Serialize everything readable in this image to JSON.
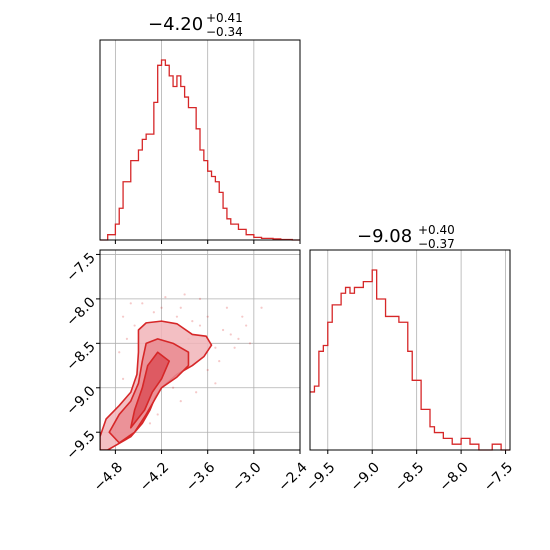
{
  "chart_data": {
    "type": "corner",
    "color": "#d62728",
    "fill_color": "#f1b4b8",
    "grid": true,
    "titles": [
      {
        "median": "−4.20",
        "plus": "+0.41",
        "minus": "−0.34"
      },
      {
        "median": "−9.08",
        "plus": "+0.40",
        "minus": "−0.37"
      }
    ],
    "param1": {
      "range": [
        -5.0,
        -2.4
      ],
      "ticks": [
        -4.8,
        -4.2,
        -3.6,
        -3.0,
        -2.4
      ],
      "tick_labels": [
        "−4.8",
        "−4.2",
        "−3.6",
        "−3.0",
        "−2.4"
      ]
    },
    "param2": {
      "range": [
        -9.7,
        -7.45
      ],
      "ticks_vertical": [
        -7.5,
        -8.0,
        -8.5,
        -9.0,
        -9.5
      ],
      "tick_labels_vertical": [
        "−7.5",
        "−8.0",
        "−8.5",
        "−9.0",
        "−9.5"
      ],
      "ticks_horizontal": [
        -9.5,
        -9.0,
        -8.5,
        -8.0,
        -7.5
      ],
      "tick_labels_horizontal": [
        "−9.5",
        "−9.0",
        "−8.5",
        "−8.0",
        "−7.5"
      ]
    },
    "hist1": {
      "start": -5.0,
      "bin_width": 0.05,
      "counts": [
        0,
        0,
        1,
        1,
        3,
        6,
        11,
        11,
        15,
        15,
        17,
        19,
        20,
        20,
        26,
        33,
        34,
        33,
        31,
        29,
        31,
        29,
        27,
        25,
        25,
        21,
        17,
        15,
        13,
        12,
        11,
        9,
        6,
        4,
        3,
        3,
        2,
        2,
        1,
        1,
        0.5,
        0.5,
        0.3,
        0.3,
        0.3,
        0.2,
        0.2,
        0.1,
        0.1,
        0.1,
        0,
        0
      ]
    },
    "hist2": {
      "start": -9.7,
      "bin_width": 0.05,
      "counts": [
        10,
        11,
        17,
        18,
        22,
        25,
        25,
        27,
        28,
        27,
        28,
        28,
        29,
        29,
        31,
        26,
        26,
        23,
        23,
        23,
        22,
        22,
        17,
        12,
        12,
        7,
        7,
        4,
        3,
        3,
        2,
        2,
        1,
        1,
        2,
        2,
        1,
        1,
        0,
        0,
        0,
        1,
        1,
        0,
        0
      ]
    },
    "contours": [
      [
        [
          -4.9,
          -9.7
        ],
        [
          -4.8,
          -9.65
        ],
        [
          -4.6,
          -9.55
        ],
        [
          -4.45,
          -9.4
        ],
        [
          -4.35,
          -9.25
        ],
        [
          -4.28,
          -9.1
        ],
        [
          -4.2,
          -9.0
        ],
        [
          -4.0,
          -8.85
        ],
        [
          -3.8,
          -8.75
        ],
        [
          -3.65,
          -8.65
        ],
        [
          -3.55,
          -8.52
        ],
        [
          -3.62,
          -8.42
        ],
        [
          -3.8,
          -8.4
        ],
        [
          -4.0,
          -8.28
        ],
        [
          -4.2,
          -8.25
        ],
        [
          -4.4,
          -8.27
        ],
        [
          -4.5,
          -8.35
        ],
        [
          -4.5,
          -8.6
        ],
        [
          -4.52,
          -8.85
        ],
        [
          -4.6,
          -9.05
        ],
        [
          -4.75,
          -9.2
        ],
        [
          -4.92,
          -9.35
        ],
        [
          -5.0,
          -9.55
        ],
        [
          -5.0,
          -9.7
        ]
      ],
      [
        [
          -4.75,
          -9.62
        ],
        [
          -4.55,
          -9.5
        ],
        [
          -4.4,
          -9.3
        ],
        [
          -4.3,
          -9.15
        ],
        [
          -4.2,
          -9.0
        ],
        [
          -4.0,
          -8.88
        ],
        [
          -3.85,
          -8.75
        ],
        [
          -3.85,
          -8.6
        ],
        [
          -4.05,
          -8.5
        ],
        [
          -4.25,
          -8.45
        ],
        [
          -4.4,
          -8.5
        ],
        [
          -4.45,
          -8.7
        ],
        [
          -4.5,
          -8.95
        ],
        [
          -4.6,
          -9.15
        ],
        [
          -4.75,
          -9.3
        ],
        [
          -4.88,
          -9.5
        ]
      ],
      [
        [
          -4.6,
          -9.45
        ],
        [
          -4.42,
          -9.25
        ],
        [
          -4.32,
          -9.05
        ],
        [
          -4.2,
          -8.9
        ],
        [
          -4.1,
          -8.7
        ],
        [
          -4.25,
          -8.6
        ],
        [
          -4.38,
          -8.75
        ],
        [
          -4.45,
          -9.0
        ],
        [
          -4.55,
          -9.25
        ]
      ]
    ],
    "scatter": [
      [
        -4.45,
        -8.05
      ],
      [
        -4.6,
        -8.05
      ],
      [
        -4.3,
        -8.15
      ],
      [
        -4.0,
        -8.2
      ],
      [
        -3.95,
        -8.1
      ],
      [
        -3.8,
        -8.25
      ],
      [
        -3.7,
        -8.3
      ],
      [
        -3.4,
        -8.35
      ],
      [
        -3.3,
        -8.4
      ],
      [
        -3.2,
        -8.45
      ],
      [
        -3.5,
        -8.55
      ],
      [
        -3.45,
        -8.7
      ],
      [
        -3.6,
        -8.8
      ],
      [
        -3.9,
        -7.95
      ],
      [
        -4.15,
        -7.98
      ],
      [
        -3.1,
        -8.3
      ],
      [
        -3.35,
        -8.1
      ],
      [
        -3.7,
        -8.0
      ],
      [
        -2.9,
        -8.1
      ],
      [
        -4.7,
        -8.2
      ],
      [
        -4.55,
        -8.3
      ],
      [
        -4.65,
        -8.45
      ],
      [
        -4.75,
        -8.6
      ],
      [
        -4.7,
        -8.9
      ],
      [
        -3.5,
        -8.95
      ],
      [
        -3.75,
        -9.05
      ],
      [
        -3.95,
        -9.15
      ],
      [
        -3.6,
        -8.2
      ],
      [
        -3.25,
        -8.55
      ],
      [
        -3.05,
        -8.5
      ],
      [
        -3.15,
        -8.2
      ],
      [
        -4.2,
        -8.1
      ],
      [
        -3.85,
        -8.45
      ],
      [
        -4.05,
        -9.0
      ],
      [
        -4.35,
        -9.4
      ],
      [
        -4.25,
        -9.3
      ]
    ]
  }
}
